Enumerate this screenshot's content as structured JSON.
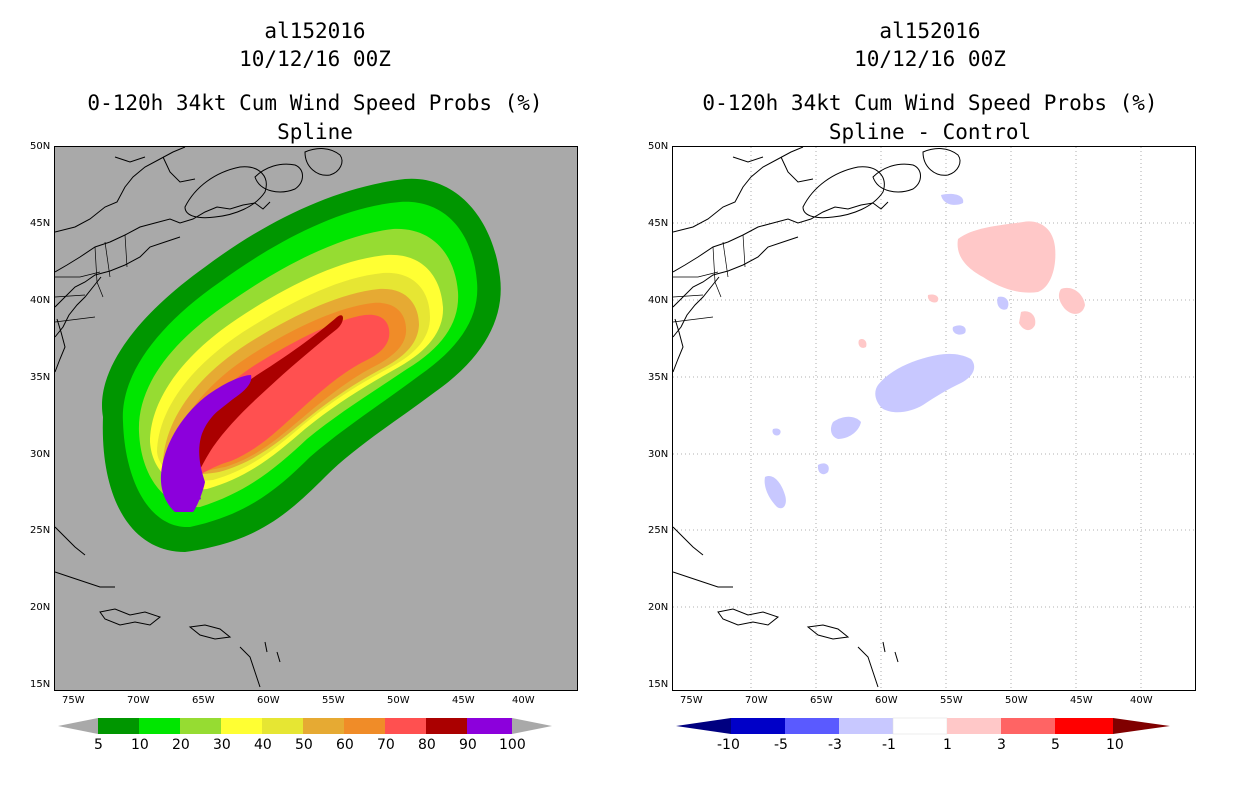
{
  "left_panel": {
    "storm_id": "al152016",
    "date": "10/12/16 00Z",
    "product": "0-120h 34kt Cum Wind Speed Probs (%)",
    "subtitle": "Spline",
    "background_color": "#a9a9a9",
    "lat_labels": [
      "50N",
      "45N",
      "40N",
      "35N",
      "30N",
      "25N",
      "20N",
      "15N"
    ],
    "lon_labels": [
      "75W",
      "70W",
      "65W",
      "60W",
      "55W",
      "50W",
      "45W",
      "40W"
    ],
    "colorbar": {
      "labels": [
        "5",
        "10",
        "20",
        "30",
        "40",
        "50",
        "60",
        "70",
        "80",
        "90",
        "100"
      ],
      "colors": [
        "#009600",
        "#00e600",
        "#96dc32",
        "#ffff33",
        "#e6e633",
        "#e6aa33",
        "#f08c28",
        "#ff5050",
        "#aa0000",
        "#8c00dc"
      ]
    }
  },
  "right_panel": {
    "storm_id": "al152016",
    "date": "10/12/16 00Z",
    "product": "0-120h 34kt Cum Wind Speed Probs (%)",
    "subtitle": "Spline - Control",
    "lat_labels": [
      "50N",
      "45N",
      "40N",
      "35N",
      "30N",
      "25N",
      "20N",
      "15N"
    ],
    "lon_labels": [
      "75W",
      "70W",
      "65W",
      "60W",
      "55W",
      "50W",
      "45W",
      "40W"
    ],
    "colorbar": {
      "labels": [
        "-10",
        "-5",
        "-3",
        "-1",
        "1",
        "3",
        "5",
        "10"
      ],
      "colors": [
        "#0000c8",
        "#5a5aff",
        "#c8c8ff",
        "#ffffff",
        "#ffc8c8",
        "#ff6464",
        "#ff0000",
        "#8b0000"
      ],
      "left_arrow_color": "#000080",
      "right_arrow_color": "#800000"
    }
  }
}
